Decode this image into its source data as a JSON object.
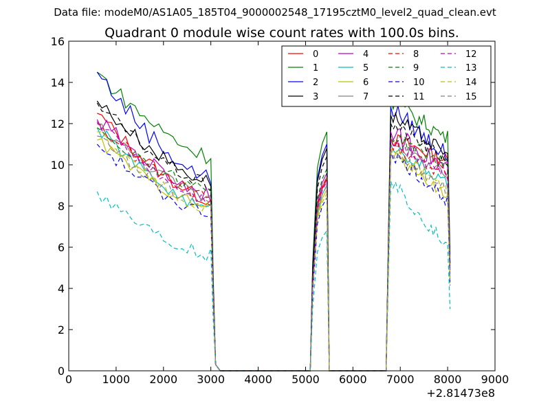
{
  "chart_data": {
    "type": "line",
    "suptitle": "Data file: modeM0/AS1A05_185T04_9000002548_17195cztM0_level2_quad_clean.evt",
    "title": "Quadrant 0 module wise count rates with 100.0s bins.",
    "xlabel": "",
    "ylabel": "",
    "xlim": [
      0,
      9000
    ],
    "ylim": [
      0,
      16
    ],
    "xticks": [
      "0",
      "1000",
      "2000",
      "3000",
      "4000",
      "5000",
      "6000",
      "7000",
      "8000",
      "9000"
    ],
    "yticks": [
      "0",
      "2",
      "4",
      "6",
      "8",
      "10",
      "12",
      "14",
      "16"
    ],
    "x_offset_label": "+2.81473e8",
    "legend_position": "top-right",
    "series_style_note": "modules 0-7 solid lines, modules 8-15 dashed lines",
    "segments": [
      {
        "name": "first",
        "start": 600,
        "end": 3000,
        "step": 100
      },
      {
        "name": "second",
        "start": 5200,
        "end": 5450,
        "step": 50
      },
      {
        "name": "third",
        "start": 6800,
        "end": 8000,
        "step": 50
      }
    ],
    "series": [
      {
        "name": "0",
        "color": "#ff0000",
        "dash": false,
        "start": 12.5,
        "end1": 8.3,
        "peak2": 9.3,
        "start3": 11.3,
        "end3": 10.2,
        "noise": 0.35
      },
      {
        "name": "1",
        "color": "#008000",
        "dash": false,
        "start": 14.5,
        "end1": 10.4,
        "peak2": 11.6,
        "start3": 13.1,
        "end3": 11.3,
        "noise": 0.4
      },
      {
        "name": "2",
        "color": "#0000ff",
        "dash": false,
        "start": 14.5,
        "end1": 9.3,
        "peak2": 11.0,
        "start3": 12.8,
        "end3": 10.4,
        "noise": 0.45
      },
      {
        "name": "3",
        "color": "#000000",
        "dash": false,
        "start": 13.1,
        "end1": 9.2,
        "peak2": 10.8,
        "start3": 12.4,
        "end3": 10.5,
        "noise": 0.35
      },
      {
        "name": "4",
        "color": "#bf00bf",
        "dash": false,
        "start": 12.2,
        "end1": 8.6,
        "peak2": 9.6,
        "start3": 11.6,
        "end3": 9.8,
        "noise": 0.45
      },
      {
        "name": "5",
        "color": "#00bfbf",
        "dash": false,
        "start": 11.8,
        "end1": 7.8,
        "peak2": 9.0,
        "start3": 11.0,
        "end3": 9.0,
        "noise": 0.3
      },
      {
        "name": "6",
        "color": "#bfbf00",
        "dash": false,
        "start": 11.2,
        "end1": 7.9,
        "peak2": 8.8,
        "start3": 10.6,
        "end3": 8.5,
        "noise": 0.3
      },
      {
        "name": "7",
        "color": "#808080",
        "dash": false,
        "start": 12.0,
        "end1": 8.4,
        "peak2": 9.4,
        "start3": 11.2,
        "end3": 9.4,
        "noise": 0.3
      },
      {
        "name": "8",
        "color": "#ff0000",
        "dash": true,
        "start": 12.0,
        "end1": 8.4,
        "peak2": 9.4,
        "start3": 11.0,
        "end3": 9.5,
        "noise": 0.35
      },
      {
        "name": "9",
        "color": "#008000",
        "dash": true,
        "start": 11.8,
        "end1": 8.8,
        "peak2": 9.8,
        "start3": 11.4,
        "end3": 10.0,
        "noise": 0.35
      },
      {
        "name": "10",
        "color": "#0000ff",
        "dash": true,
        "start": 11.0,
        "end1": 7.6,
        "peak2": 8.4,
        "start3": 10.6,
        "end3": 8.3,
        "noise": 0.35
      },
      {
        "name": "11",
        "color": "#000000",
        "dash": true,
        "start": 13.0,
        "end1": 9.0,
        "peak2": 10.4,
        "start3": 12.0,
        "end3": 10.2,
        "noise": 0.35
      },
      {
        "name": "12",
        "color": "#bf00bf",
        "dash": true,
        "start": 12.1,
        "end1": 8.3,
        "peak2": 9.2,
        "start3": 11.2,
        "end3": 9.5,
        "noise": 0.3
      },
      {
        "name": "13",
        "color": "#00bfbf",
        "dash": true,
        "start": 8.7,
        "end1": 5.6,
        "peak2": 6.8,
        "start3": 9.2,
        "end3": 6.0,
        "noise": 0.35
      },
      {
        "name": "14",
        "color": "#bfbf00",
        "dash": true,
        "start": 11.6,
        "end1": 7.8,
        "peak2": 8.6,
        "start3": 10.8,
        "end3": 8.7,
        "noise": 0.3
      },
      {
        "name": "15",
        "color": "#808080",
        "dash": true,
        "start": 11.4,
        "end1": 8.0,
        "peak2": 9.0,
        "start3": 10.7,
        "end3": 8.8,
        "noise": 0.3
      }
    ]
  }
}
